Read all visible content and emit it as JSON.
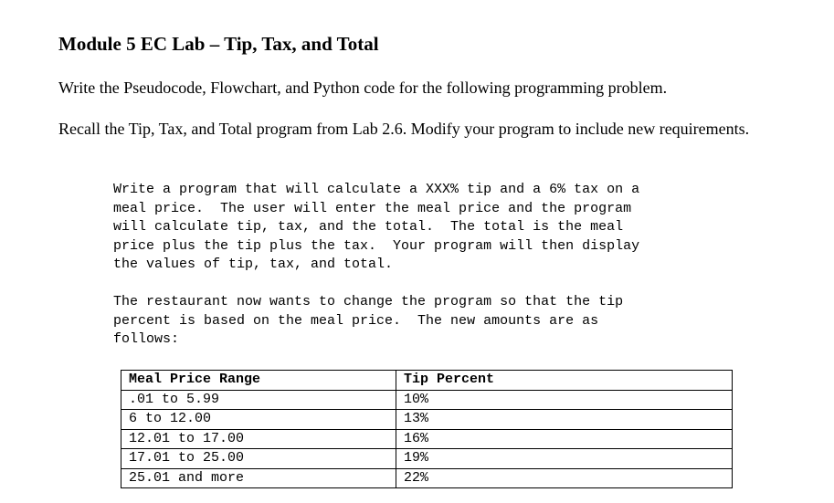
{
  "title": "Module 5 EC Lab – Tip, Tax, and Total",
  "intro": "Write the Pseudocode, Flowchart, and Python code for the following programming problem.",
  "recall": "Recall the Tip, Tax, and Total program from Lab 2.6.  Modify your program to include new requirements.",
  "requirements_lines": [
    "Write a program that will calculate a XXX% tip and a 6% tax on a",
    "meal price.  The user will enter the meal price and the program",
    "will calculate tip, tax, and the total.  The total is the meal",
    "price plus the tip plus the tax.  Your program will then display",
    "the values of tip, tax, and total."
  ],
  "change_lines": [
    "The restaurant now wants to change the program so that the tip",
    "percent is based on the meal price.  The new amounts are as",
    "follows:"
  ],
  "table": {
    "headers": [
      "Meal Price Range",
      "Tip Percent"
    ],
    "rows": [
      [
        ".01 to 5.99",
        "10%"
      ],
      [
        "6 to 12.00",
        "13%"
      ],
      [
        "12.01 to 17.00",
        "16%"
      ],
      [
        "17.01 to 25.00",
        "19%"
      ],
      [
        "25.01 and more",
        "22%"
      ]
    ]
  }
}
